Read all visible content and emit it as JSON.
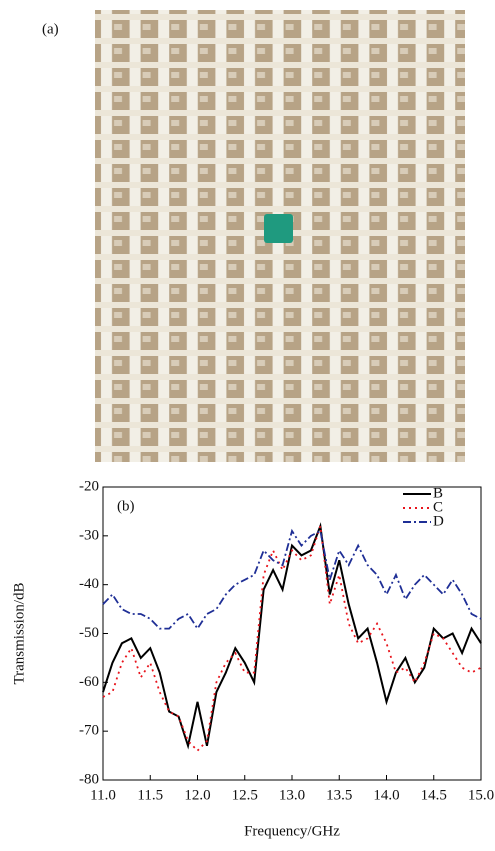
{
  "photo_label": "(a)",
  "chart_data": {
    "type": "line",
    "annotation": "(b)",
    "x_label": "Frequency/GHz",
    "y_label": "Transmission/dB",
    "xlim": [
      11,
      15
    ],
    "ylim": [
      -80,
      -20
    ],
    "xticks": [
      {
        "value": 11,
        "label": "11.0"
      },
      11.5,
      {
        "value": 12,
        "label": "12.0"
      },
      12.5,
      {
        "value": 13,
        "label": "13.0"
      },
      13.5,
      {
        "value": 14,
        "label": "14.0"
      },
      14.5,
      {
        "value": 15,
        "label": "15.0"
      }
    ],
    "yticks": [
      -80,
      -70,
      -60,
      -50,
      -40,
      -30,
      -20
    ],
    "legend": "upper right",
    "x": [
      11.0,
      11.1,
      11.2,
      11.3,
      11.4,
      11.5,
      11.6,
      11.7,
      11.8,
      11.9,
      12.0,
      12.1,
      12.2,
      12.3,
      12.4,
      12.5,
      12.6,
      12.7,
      12.8,
      12.9,
      13.0,
      13.1,
      13.2,
      13.3,
      13.4,
      13.5,
      13.6,
      13.7,
      13.8,
      13.9,
      14.0,
      14.1,
      14.2,
      14.3,
      14.4,
      14.5,
      14.6,
      14.7,
      14.8,
      14.9,
      15.0
    ],
    "series": [
      {
        "name": "B",
        "color": "#000000",
        "linestyle": "solid",
        "values": [
          -62,
          -56,
          -52,
          -51,
          -55,
          -53,
          -58,
          -66,
          -67,
          -73,
          -64,
          -73,
          -62,
          -58,
          -53,
          -56,
          -60,
          -41,
          -37,
          -41,
          -32,
          -34,
          -33,
          -28,
          -42,
          -35,
          -44,
          -51,
          -49,
          -56,
          -64,
          -58,
          -55,
          -60,
          -57,
          -49,
          -51,
          -50,
          -54,
          -49,
          -52
        ]
      },
      {
        "name": "C",
        "color": "#e8141c",
        "linestyle": "dotted",
        "values": [
          -63,
          -62,
          -56,
          -53,
          -59,
          -56,
          -62,
          -66,
          -67,
          -72,
          -74,
          -72,
          -60,
          -56,
          -54,
          -58,
          -58,
          -38,
          -33,
          -37,
          -33,
          -35,
          -34,
          -28,
          -44,
          -38,
          -48,
          -52,
          -51,
          -48,
          -52,
          -58,
          -57,
          -60,
          -56,
          -50,
          -51,
          -54,
          -57,
          -58,
          -57
        ]
      },
      {
        "name": "D",
        "color": "#1f2f96",
        "linestyle": "dashdot",
        "values": [
          -44,
          -42,
          -45,
          -46,
          -46,
          -47,
          -49,
          -49,
          -47,
          -46,
          -49,
          -46,
          -45,
          -42,
          -40,
          -39,
          -38,
          -33,
          -35,
          -36,
          -29,
          -32,
          -30,
          -29,
          -39,
          -33,
          -36,
          -32,
          -36,
          -38,
          -42,
          -38,
          -43,
          -40,
          -38,
          -40,
          -42,
          -39,
          -42,
          -46,
          -47
        ]
      }
    ]
  }
}
